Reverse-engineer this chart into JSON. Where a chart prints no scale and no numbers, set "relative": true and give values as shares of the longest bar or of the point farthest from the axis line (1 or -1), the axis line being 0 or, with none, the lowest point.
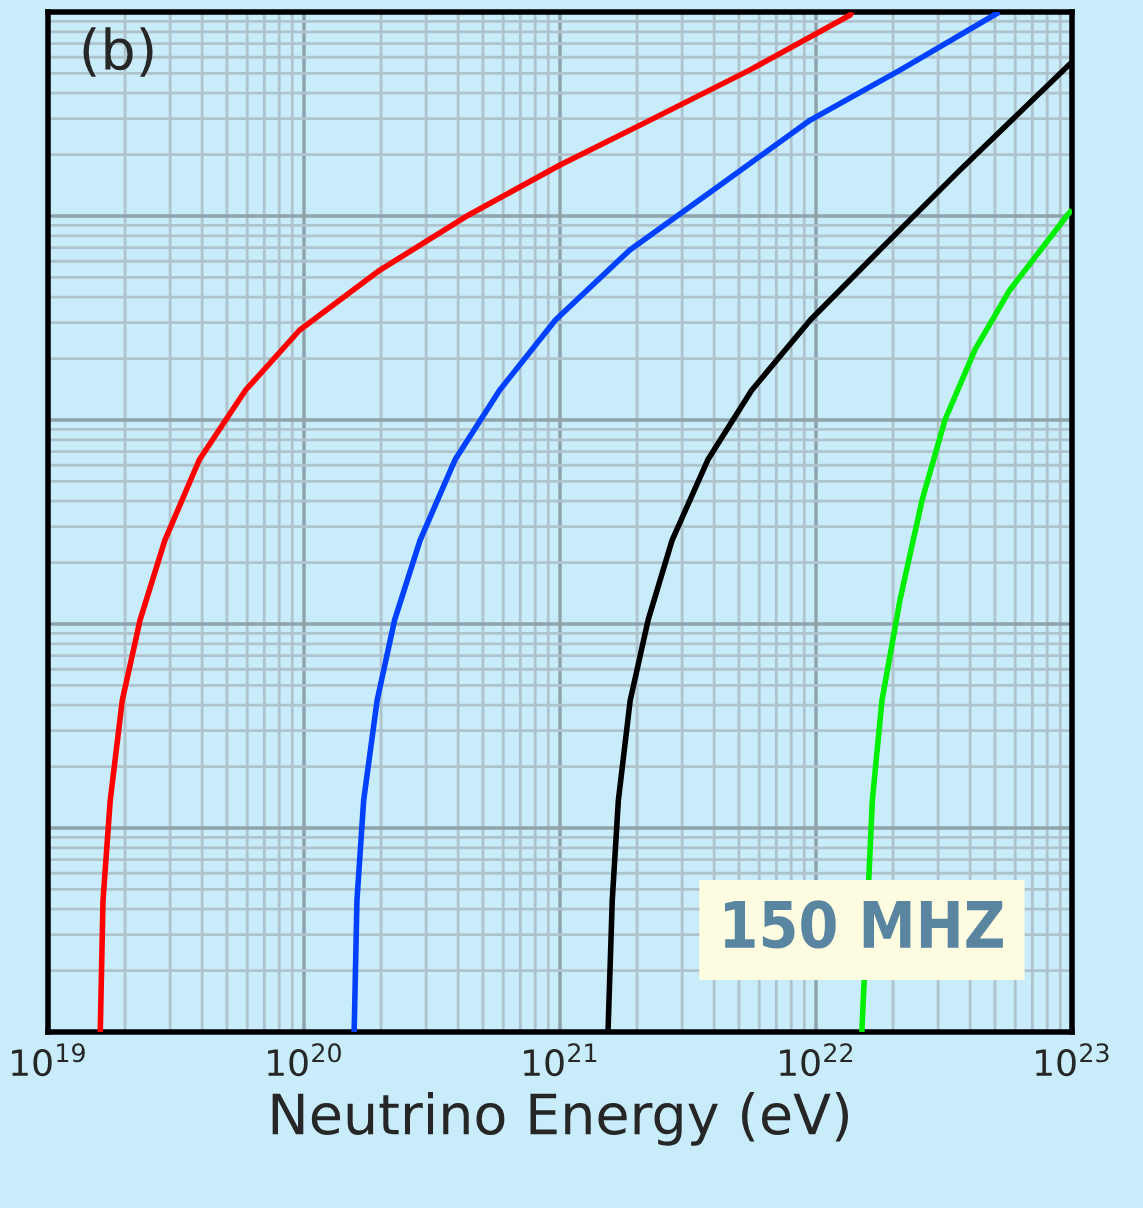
{
  "chart_data": {
    "type": "line",
    "relative": true,
    "xlabel": "Neutrino Energy (eV)",
    "log": "x",
    "grid": true,
    "tick_labels": "x",
    "line_style": "solid",
    "marker": "none",
    "xlim": [
      1e+19,
      1e+23
    ],
    "xticks": [
      {
        "value": 1e+19,
        "label": "10$^{19}$"
      },
      {
        "value": 1e+20,
        "label": "10$^{20}$"
      },
      {
        "value": 1e+21,
        "label": "10$^{21}$"
      },
      {
        "value": 1e+22,
        "label": "10$^{22}$"
      },
      {
        "value": 1e+23,
        "label": "10$^{23}$"
      }
    ],
    "annotations": [
      "(b)",
      "150 MHZ"
    ],
    "series": [
      {
        "color": "#ff0000",
        "x": [
          1.6e+19,
          1.64e+19,
          1.75e+19,
          1.95e+19,
          2.29e+19,
          2.86e+19,
          3.9e+19,
          5.9e+19,
          9.6e+19,
          1.98e+20,
          4.4e+20,
          1e+21,
          2.25e+21,
          5.5e+21,
          1.36e+22,
          1.38e+22
        ],
        "values": [
          0,
          0.129,
          0.227,
          0.325,
          0.404,
          0.482,
          0.561,
          0.629,
          0.688,
          0.747,
          0.801,
          0.85,
          0.894,
          0.943,
          0.997,
          1
        ]
      },
      {
        "color": "#0040ff",
        "x": [
          1.57e+20,
          1.61e+20,
          1.71e+20,
          1.93e+20,
          2.26e+20,
          2.84e+20,
          3.89e+20,
          5.8e+20,
          9.6e+20,
          1.88e+21,
          4.2e+21,
          9.5e+21,
          2.13e+22,
          5.2e+22
        ],
        "values": [
          0,
          0.129,
          0.227,
          0.325,
          0.404,
          0.482,
          0.561,
          0.629,
          0.698,
          0.767,
          0.83,
          0.894,
          0.943,
          1
        ]
      },
      {
        "color": "#000000",
        "x": [
          1.54e+21,
          1.6e+21,
          1.69e+21,
          1.88e+21,
          2.21e+21,
          2.74e+21,
          3.78e+21,
          5.6e+21,
          9.5e+21,
          1.78e+22,
          3.65e+22,
          1e+23
        ],
        "values": [
          0,
          0.129,
          0.227,
          0.325,
          0.404,
          0.482,
          0.561,
          0.629,
          0.698,
          0.767,
          0.845,
          0.951
        ]
      },
      {
        "color": "#00ee00",
        "x": [
          1.51e+22,
          1.66e+22,
          1.81e+22,
          2.13e+22,
          2.6e+22,
          3.19e+22,
          4.18e+22,
          5.7e+22,
          9.6e+22,
          1e+23
        ],
        "values": [
          0,
          0.227,
          0.325,
          0.424,
          0.522,
          0.6,
          0.669,
          0.727,
          0.801,
          0.806
        ]
      }
    ]
  }
}
